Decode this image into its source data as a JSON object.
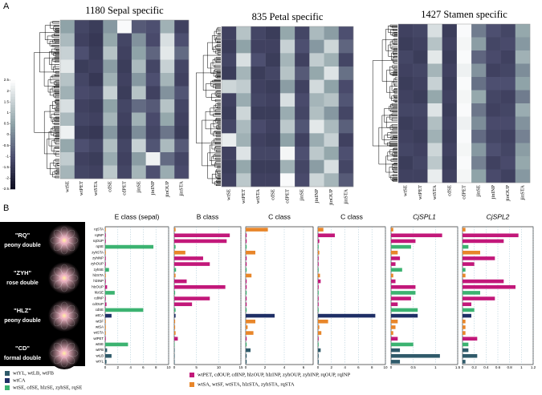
{
  "panels": [
    "A",
    "B"
  ],
  "flowers": [
    {
      "name": "\"RQ\"",
      "desc": "peony double",
      "color": "#d8234a"
    },
    {
      "name": "\"ZYH\"",
      "desc": "rose double",
      "color": "#e04e8a"
    },
    {
      "name": "\"HLZ\"",
      "desc": "peony double",
      "color": "#e0343c"
    },
    {
      "name": "\"CD\"",
      "desc": "formal double",
      "color": "#d8304c"
    }
  ],
  "legend": [
    {
      "label": "wtYL, wtLB, wtFB",
      "color": "#2f5a6a"
    },
    {
      "label": "wtCA",
      "color": "#1f2f66"
    },
    {
      "label": "wtSE, cdSE, hlzSE, zyhSE, rqSE",
      "color": "#3cb371"
    },
    {
      "label": "wtPET, cdOUP, cdINP, hlzOUP, hlzINP, zyhOUP, zyhINP, rqOUP, rqINP",
      "color": "#c2187a"
    },
    {
      "label": "wtSA, wtSF, wtSTA, hlzSTA, zyhSTA, rqSTA",
      "color": "#e8862a"
    }
  ],
  "chart_data": [
    {
      "type": "heatmap",
      "title": "1180 Sepal specific",
      "columns": [
        "wtSE",
        "wtPET",
        "wtSTA",
        "cdSE",
        "cdPET",
        "jinSE",
        "jinINP",
        "jinOUP",
        "jinSTA"
      ],
      "rows": [
        [
          0.5,
          -1.2,
          -1.4,
          0.3,
          2.4,
          -0.8,
          -1.0,
          0.8,
          -1.3
        ],
        [
          1.0,
          -1.3,
          -1.5,
          0.6,
          -1.2,
          0.2,
          -1.1,
          1.8,
          -1.0
        ],
        [
          1.5,
          -1.0,
          -1.4,
          1.2,
          -1.3,
          0.5,
          -0.6,
          2.0,
          -0.5
        ],
        [
          2.0,
          -1.4,
          -1.3,
          0.4,
          -1.4,
          1.0,
          -1.2,
          1.5,
          -1.2
        ],
        [
          1.2,
          -1.2,
          -1.5,
          0.8,
          -1.3,
          0.3,
          -1.0,
          0.9,
          -1.3
        ],
        [
          0.8,
          -1.1,
          -1.2,
          1.5,
          -1.4,
          1.2,
          -1.3,
          0.2,
          -0.9
        ],
        [
          1.8,
          -1.3,
          -1.4,
          0.5,
          -1.2,
          -0.5,
          -0.8,
          1.2,
          -1.2
        ],
        [
          1.0,
          -1.2,
          -1.3,
          0.9,
          -1.3,
          0.8,
          -1.1,
          0.6,
          -1.3
        ],
        [
          2.2,
          -1.4,
          -1.5,
          0.3,
          -1.4,
          0.1,
          -1.2,
          -0.3,
          -1.4
        ],
        [
          0.6,
          -1.0,
          -1.2,
          1.1,
          -1.2,
          1.5,
          -0.9,
          1.0,
          -0.8
        ],
        [
          1.4,
          -1.3,
          -1.4,
          0.7,
          -1.3,
          0.4,
          2.2,
          -0.5,
          -1.2
        ],
        [
          0.9,
          -1.2,
          -1.3,
          1.3,
          -1.2,
          0.9,
          -1.0,
          0.7,
          -1.1
        ]
      ],
      "colorscale": [
        [
          -2.5,
          "#0b0b1e"
        ],
        [
          -1,
          "#4d4f70"
        ],
        [
          0.5,
          "#8fa3a8"
        ],
        [
          2.5,
          "#ffffff"
        ]
      ],
      "colorbar_lim": [
        -2.5,
        2.5
      ],
      "colorbar_ticks": [
        2.5,
        2,
        1.5,
        1,
        0.5,
        0,
        -0.5,
        -1,
        -1.5,
        -2,
        -2.5
      ]
    },
    {
      "type": "heatmap",
      "title": "835 Petal specific",
      "columns": [
        "wtSE",
        "wtPET",
        "wtSTA",
        "cdSE",
        "cdPET",
        "jinSE",
        "jinINP",
        "jinOUP",
        "jinSTA"
      ],
      "rows": [
        [
          -1.3,
          1.2,
          -1.2,
          -1.4,
          0.6,
          -1.2,
          1.0,
          0.4,
          -1.0
        ],
        [
          -1.4,
          0.5,
          -1.3,
          -1.3,
          1.5,
          -1.0,
          0.3,
          1.6,
          -0.6
        ],
        [
          -1.2,
          1.8,
          -1.0,
          -1.4,
          0.9,
          -1.3,
          1.4,
          0.8,
          -1.2
        ],
        [
          -1.4,
          0.9,
          -1.4,
          -1.2,
          1.2,
          -0.8,
          0.6,
          1.9,
          -0.4
        ],
        [
          1.6,
          1.4,
          -1.3,
          -1.4,
          0.4,
          -1.3,
          1.7,
          0.5,
          -1.1
        ],
        [
          -1.3,
          0.7,
          -1.2,
          -1.3,
          1.8,
          -1.1,
          0.9,
          1.2,
          -0.9
        ],
        [
          -1.4,
          1.6,
          -1.4,
          -1.4,
          0.7,
          -1.2,
          1.1,
          0.3,
          -1.2
        ],
        [
          -1.2,
          1.0,
          -1.1,
          -1.3,
          1.3,
          -0.9,
          2.0,
          1.0,
          -0.7
        ],
        [
          2.1,
          0.8,
          -1.3,
          -1.4,
          0.5,
          -1.3,
          0.7,
          1.5,
          -1.3
        ],
        [
          -1.3,
          1.9,
          -1.2,
          -1.2,
          2.3,
          -1.0,
          1.3,
          0.6,
          -1.0
        ],
        [
          -1.4,
          0.6,
          -1.4,
          -1.4,
          0.8,
          -1.2,
          0.4,
          1.8,
          -1.2
        ],
        [
          -1.3,
          1.3,
          -1.3,
          -1.3,
          2.4,
          -1.1,
          1.6,
          0.9,
          -0.8
        ]
      ]
    },
    {
      "type": "heatmap",
      "title": "1427 Stamen specific",
      "columns": [
        "wtSE",
        "wtPET",
        "wtSTA",
        "cdSE",
        "cdPET",
        "jinSE",
        "jinINP",
        "jinOUP",
        "jinSTA"
      ],
      "rows": [
        [
          -1.3,
          -1.2,
          1.8,
          -1.4,
          2.4,
          -0.2,
          -1.0,
          -1.2,
          0.6
        ],
        [
          -1.4,
          -1.3,
          1.2,
          -1.3,
          2.3,
          0.4,
          -1.2,
          -1.1,
          0.3
        ],
        [
          -1.2,
          -1.4,
          2.0,
          -1.4,
          2.4,
          -0.6,
          -1.1,
          -1.3,
          0.8
        ],
        [
          -1.3,
          -1.2,
          0.9,
          -1.3,
          2.2,
          0.2,
          -1.3,
          -1.2,
          0.1
        ],
        [
          -1.4,
          -1.3,
          1.5,
          -1.4,
          2.4,
          -0.4,
          -1.0,
          -1.0,
          0.5
        ],
        [
          -1.3,
          -1.4,
          0.6,
          -1.3,
          2.3,
          0.6,
          -1.2,
          -1.3,
          -0.2
        ],
        [
          -1.2,
          -1.2,
          1.9,
          -1.4,
          2.4,
          -0.3,
          -1.3,
          -1.2,
          0.7
        ],
        [
          -1.4,
          -1.3,
          1.1,
          -1.3,
          2.2,
          0.1,
          -1.1,
          -1.1,
          0.2
        ],
        [
          -1.3,
          -1.4,
          0.8,
          -1.4,
          2.4,
          -0.5,
          -1.2,
          -1.3,
          -0.1
        ],
        [
          -1.2,
          -1.3,
          1.6,
          -1.3,
          2.3,
          0.3,
          -1.0,
          -1.2,
          0.4
        ],
        [
          -1.4,
          -1.2,
          1.3,
          -1.4,
          2.4,
          -0.1,
          -1.3,
          -1.1,
          0.6
        ],
        [
          -1.3,
          -1.3,
          2.1,
          -1.3,
          2.3,
          0.5,
          -1.1,
          -1.3,
          0.3
        ]
      ]
    },
    {
      "type": "bar",
      "title": "E class (sepal)",
      "categories": [
        "rqSTA",
        "rqINP",
        "rqOUP",
        "rqSE",
        "zyhSTA",
        "zyhINP",
        "zyhOUP",
        "zyhSE",
        "hlzSTA",
        "hlzINP",
        "hlzOUP",
        "hlzSE",
        "cdINP",
        "cdOUP",
        "cdSE",
        "wtCA",
        "wtSF",
        "wtSA",
        "wtSTA",
        "wtPET",
        "wtSE",
        "wtFB",
        "wtLB",
        "wtYL"
      ],
      "category_colors": [
        "#e8862a",
        "#c2187a",
        "#c2187a",
        "#3cb371",
        "#e8862a",
        "#c2187a",
        "#c2187a",
        "#3cb371",
        "#e8862a",
        "#c2187a",
        "#c2187a",
        "#3cb371",
        "#c2187a",
        "#c2187a",
        "#3cb371",
        "#1f2f66",
        "#e8862a",
        "#e8862a",
        "#e8862a",
        "#c2187a",
        "#3cb371",
        "#2f5a6a",
        "#2f5a6a",
        "#2f5a6a"
      ],
      "values": [
        0.1,
        0.1,
        0.1,
        7.6,
        0.1,
        0.1,
        0.1,
        0.6,
        0.1,
        0.1,
        0.3,
        1.5,
        0.1,
        0.2,
        6.0,
        1.0,
        0.1,
        0.1,
        0.1,
        0.1,
        3.6,
        0.3,
        1.0,
        0.2
      ],
      "xlim": [
        0,
        10
      ],
      "xticks": [
        0,
        2,
        4,
        6,
        8,
        10
      ]
    },
    {
      "type": "bar",
      "title": "B class",
      "values": [
        0.3,
        12.5,
        11.8,
        0.3,
        2.5,
        6.5,
        8.0,
        0.4,
        0.3,
        2.8,
        11.5,
        0.2,
        8.0,
        4.0,
        0.3,
        0.3,
        0.2,
        0.2,
        0.3,
        0.8,
        0.1,
        0.1,
        0.1,
        0.1
      ],
      "xlim": [
        0,
        15
      ],
      "xticks": [
        0,
        5,
        10,
        15
      ]
    },
    {
      "type": "bar",
      "title": "C class",
      "values": [
        2.3,
        0.1,
        0.1,
        0.1,
        1.0,
        0.1,
        0.1,
        0.1,
        0.6,
        0.1,
        0.1,
        0.1,
        0.1,
        0.1,
        0.1,
        3.0,
        1.0,
        0.2,
        0.8,
        0.1,
        0.1,
        0.5,
        0.1,
        0.1
      ],
      "xlim": [
        0,
        7
      ],
      "xticks": [
        0,
        2,
        4,
        6
      ]
    },
    {
      "type": "bar",
      "title": "C class",
      "values": [
        0.8,
        2.5,
        0.2,
        0.1,
        0.2,
        0.1,
        0.1,
        0.1,
        0.3,
        0.4,
        0.1,
        0.1,
        0.1,
        0.1,
        0.1,
        8.5,
        1.5,
        0.2,
        0.5,
        0.1,
        0.1,
        0.4,
        0.1,
        0.1
      ],
      "xlim": [
        0,
        10
      ],
      "xticks": [
        0,
        2,
        4,
        6,
        8,
        10
      ]
    },
    {
      "type": "bar",
      "title": "CjSPL1",
      "italic_title": true,
      "values": [
        0.05,
        1.15,
        0.55,
        0.45,
        0.15,
        0.2,
        0.1,
        0.25,
        0.05,
        0.1,
        0.55,
        0.55,
        0.45,
        0.15,
        0.6,
        0.6,
        0.15,
        0.1,
        0.05,
        0.15,
        0.5,
        0.2,
        1.1,
        0.2
      ],
      "xlim": [
        0,
        1.5
      ],
      "xticks": [
        0,
        0.5,
        1,
        1.5
      ]
    },
    {
      "type": "bar",
      "title": "CjSPL2",
      "italic_title": true,
      "values": [
        0.05,
        0.95,
        0.7,
        0.1,
        0.3,
        0.55,
        0.2,
        0.05,
        0.05,
        0.7,
        0.9,
        0.3,
        0.55,
        0.15,
        0.2,
        0.15,
        0.05,
        0.05,
        0.05,
        0.25,
        0.1,
        0.1,
        0.25,
        0.05
      ],
      "xlim": [
        0,
        1.2
      ],
      "xticks": [
        0,
        0.2,
        0.4,
        0.6,
        0.8,
        1,
        1.2
      ]
    }
  ]
}
